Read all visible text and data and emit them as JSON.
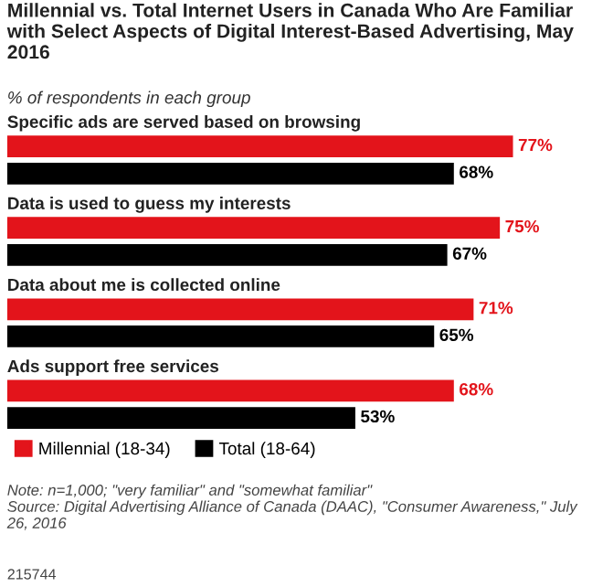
{
  "chart_data": {
    "type": "bar",
    "orientation": "horizontal",
    "title": "Millennial vs. Total Internet Users in Canada Who Are Familiar with Select Aspects of Digital Interest-Based Advertising, May 2016",
    "subtitle": "% of respondents in each group",
    "categories": [
      "Specific ads are served based on browsing",
      "Data is used to guess my interests",
      "Data about me is collected online",
      "Ads support free services"
    ],
    "series": [
      {
        "name": "Millennial (18-34)",
        "color": "#e3141b",
        "values": [
          77,
          75,
          71,
          68
        ],
        "value_labels": [
          "77%",
          "75%",
          "71%",
          "68%"
        ]
      },
      {
        "name": "Total (18-64)",
        "color": "#000000",
        "values": [
          68,
          67,
          65,
          53
        ],
        "value_labels": [
          "68%",
          "67%",
          "65%",
          "53%"
        ]
      }
    ],
    "legend": "bottom",
    "annotations": [
      "Note: n=1,000; \"very familiar\" and \"somewhat familiar\"\nSource: Digital Advertising Alliance of Canada (DAAC), \"Consumer Awareness,\" July 26, 2016",
      "215744"
    ]
  }
}
